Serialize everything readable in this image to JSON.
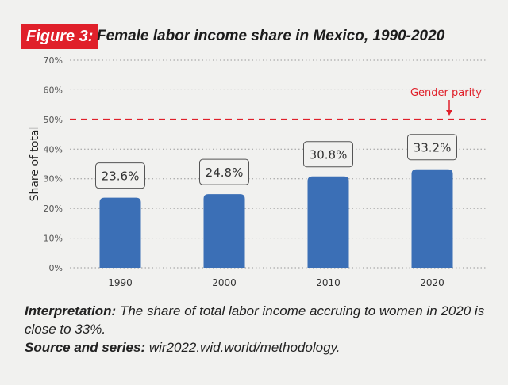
{
  "figure_label": "Figure 3:",
  "title": "Female labor income share in Mexico, 1990-2020",
  "chart_data": {
    "type": "bar",
    "title": "Female labor income share in Mexico, 1990-2020",
    "ylabel": "Share of total",
    "xlabel": "",
    "categories": [
      "1990",
      "2000",
      "2010",
      "2020"
    ],
    "values": [
      23.6,
      24.8,
      30.8,
      33.2
    ],
    "data_labels": [
      "23.6%",
      "24.8%",
      "30.8%",
      "33.2%"
    ],
    "ylim": [
      0,
      70
    ],
    "yticks": [
      "0%",
      "10%",
      "20%",
      "30%",
      "40%",
      "50%",
      "60%",
      "70%"
    ],
    "grid": true,
    "reference_line": {
      "value": 50,
      "label": "Gender parity",
      "color": "#e0202a"
    },
    "bar_color": "#3b6fb6"
  },
  "notes": {
    "interpretation_label": "Interpretation:",
    "interpretation_text": " The share of total labor income accruing to women in 2020 is close to 33%.",
    "source_label": "Source and series:",
    "source_text": " wir2022.wid.world/methodology."
  }
}
